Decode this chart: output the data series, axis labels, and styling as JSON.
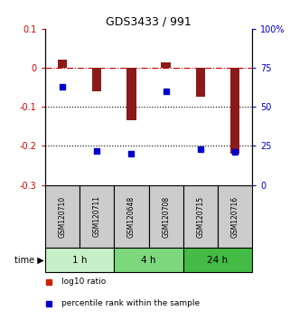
{
  "title": "GDS3433 / 991",
  "samples": [
    "GSM120710",
    "GSM120711",
    "GSM120648",
    "GSM120708",
    "GSM120715",
    "GSM120716"
  ],
  "log10_ratio": [
    0.02,
    -0.06,
    -0.135,
    0.015,
    -0.075,
    -0.22
  ],
  "percentile_rank": [
    63,
    22,
    20,
    60,
    23,
    21
  ],
  "time_groups": [
    {
      "label": "1 h",
      "start": 0,
      "end": 2,
      "color": "#c8f0c8"
    },
    {
      "label": "4 h",
      "start": 2,
      "end": 4,
      "color": "#7dd87d"
    },
    {
      "label": "24 h",
      "start": 4,
      "end": 6,
      "color": "#44bb44"
    }
  ],
  "bar_color": "#8b1a1a",
  "dot_color": "#0000cc",
  "ylim_left": [
    -0.3,
    0.1
  ],
  "ylim_right": [
    0,
    100
  ],
  "yticks_left": [
    0.1,
    0,
    -0.1,
    -0.2,
    -0.3
  ],
  "yticks_right": [
    100,
    75,
    50,
    25,
    0
  ],
  "hlines": [
    0.0,
    -0.1,
    -0.2
  ],
  "hline_styles": [
    "dashdot",
    "dotted",
    "dotted"
  ],
  "hline_colors": [
    "#cc0000",
    "black",
    "black"
  ],
  "bg_color": "white",
  "sample_box_color": "#cccccc",
  "legend_items": [
    {
      "color": "#cc2200",
      "label": "log10 ratio"
    },
    {
      "color": "#0000cc",
      "label": "percentile rank within the sample"
    }
  ]
}
